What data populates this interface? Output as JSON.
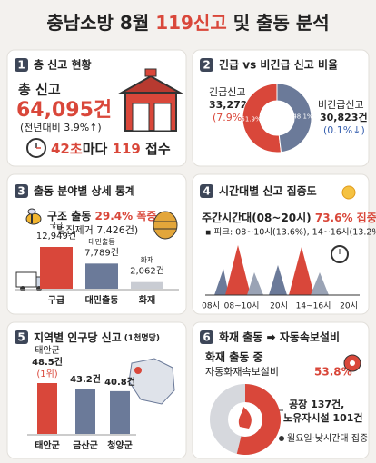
{
  "title_parts": [
    "충남소방 8월 ",
    "119신고",
    " 및 출동 분석"
  ],
  "panels": [
    {
      "number": "1",
      "title": "총 신고 현황",
      "label": "총 신고",
      "total": "64,095건",
      "change": "(전년대비 3.9%↑)",
      "interval": [
        "42초",
        "마다 ",
        "119",
        " 접수"
      ]
    },
    {
      "number": "2",
      "title": "긴급 vs 비긴급 신고 비율",
      "series": [
        {
          "name": "긴급신고",
          "count": "33,272건",
          "change": "(7.9%↑)",
          "share": 51.9,
          "share_label": "51.9%",
          "color": "#d9473a"
        },
        {
          "name": "비긴급신고",
          "count": "30,823건",
          "change": "(0.1%↓)",
          "share": 48.1,
          "share_label": "48.1%",
          "color": "#6b7a99"
        }
      ]
    },
    {
      "number": "3",
      "title": "출동 분야별 상세 통계",
      "headline": [
        "구조 출동 ",
        "29.4% 폭증"
      ],
      "note": "(벌집제거 7,426건)",
      "categories": [
        "구급",
        "대민출동",
        "화재"
      ],
      "values": [
        12949,
        7789,
        2062
      ],
      "value_labels": [
        "12,949건",
        "7,789건",
        "2,062건"
      ],
      "colors": [
        "#d9473a",
        "#6b7a99",
        "#c9ccd3"
      ]
    },
    {
      "number": "4",
      "title": "시간대별 신고 집중도",
      "headline": [
        "주간시간대(08~20시) ",
        "73.6% 집중"
      ],
      "note": "▪ 피크: 08~10시(13.6%), 14~16시(13.2%)",
      "x_labels": [
        "08시",
        "08~10시",
        "20시",
        "14~16시",
        "20시"
      ]
    },
    {
      "number": "5",
      "title": "지역별 인구당 신고",
      "title_note": "(1천명당)",
      "categories": [
        "태안군",
        "금산군",
        "청양군"
      ],
      "values": [
        48.5,
        43.2,
        40.8
      ],
      "value_labels": [
        "48.5건",
        "43.2건",
        "40.8건"
      ],
      "rank_note": "(1위)",
      "colors": [
        "#d9473a",
        "#6b7a99",
        "#6b7a99"
      ]
    },
    {
      "number": "6",
      "title": "화재 출동 ➡ 자동속보설비",
      "headline": "화재 출동 중",
      "subhead": "자동화재속보설비",
      "share": 53.8,
      "share_label": "53.8%",
      "color": "#d9473a",
      "details": [
        "공장 137건,",
        "노유자시설 101건",
        "월요일·낮시간대 집중"
      ]
    }
  ]
}
